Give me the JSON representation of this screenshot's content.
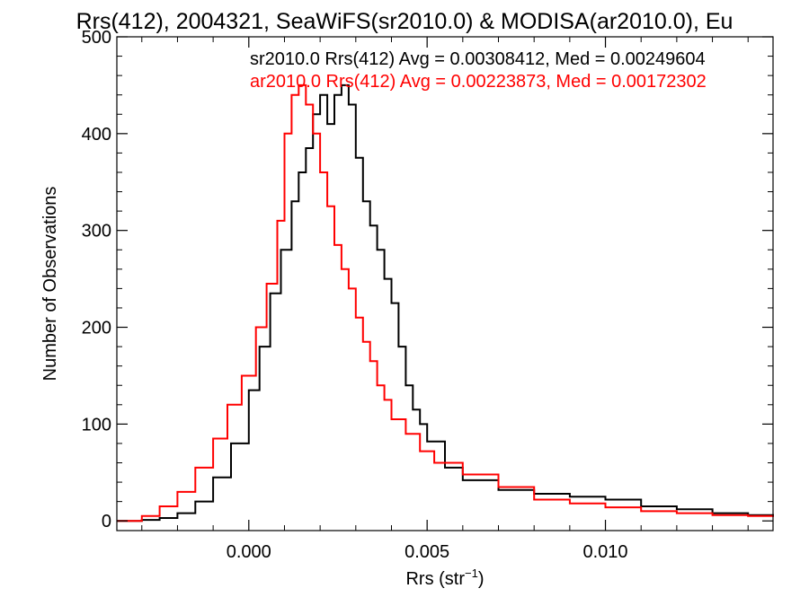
{
  "chart_data": {
    "type": "line",
    "title": "Rrs(412), 2004321, SeaWiFS(sr2010.0) & MODISA(ar2010.0), Eu",
    "xlabel": "Rrs (str",
    "xlabel_sup": "−1",
    "xlabel_close": ")",
    "ylabel": "Number of Observations",
    "xlim": [
      -0.0037,
      0.0147
    ],
    "ylim": [
      -10,
      500
    ],
    "x_ticks": [
      0.0,
      0.005,
      0.01
    ],
    "x_tick_labels": [
      "0.000",
      "0.005",
      "0.010"
    ],
    "y_ticks": [
      0,
      100,
      200,
      300,
      400,
      500
    ],
    "y_tick_labels": [
      "0",
      "100",
      "200",
      "300",
      "400",
      "500"
    ],
    "grid": false,
    "annotations": [
      {
        "text": "sr2010.0 Rrs(412) Avg = 0.00308412, Med = 0.00249604",
        "color": "#000000"
      },
      {
        "text": "ar2010.0 Rrs(412) Avg = 0.00223873, Med = 0.00172302",
        "color": "#ff0000"
      }
    ],
    "series": [
      {
        "color": "#000000",
        "x": [
          -0.0037,
          -0.003,
          -0.0025,
          -0.002,
          -0.0015,
          -0.001,
          -0.0005,
          0.0,
          0.0003,
          0.0006,
          0.0009,
          0.0012,
          0.0014,
          0.0016,
          0.0018,
          0.002,
          0.0022,
          0.0024,
          0.0026,
          0.0028,
          0.003,
          0.0032,
          0.0034,
          0.0036,
          0.0038,
          0.004,
          0.0042,
          0.0044,
          0.0046,
          0.0048,
          0.005,
          0.0055,
          0.006,
          0.007,
          0.008,
          0.009,
          0.01,
          0.011,
          0.012,
          0.013,
          0.014,
          0.0147
        ],
        "y": [
          0,
          1,
          3,
          8,
          20,
          45,
          80,
          135,
          180,
          235,
          280,
          330,
          360,
          385,
          420,
          440,
          410,
          440,
          450,
          430,
          375,
          330,
          305,
          280,
          250,
          225,
          180,
          140,
          115,
          100,
          82,
          55,
          42,
          32,
          28,
          25,
          22,
          15,
          12,
          8,
          6,
          5
        ]
      },
      {
        "color": "#ff0000",
        "x": [
          -0.0037,
          -0.003,
          -0.0025,
          -0.002,
          -0.0015,
          -0.001,
          -0.0006,
          -0.0002,
          0.0002,
          0.0005,
          0.0008,
          0.001,
          0.0012,
          0.0014,
          0.0016,
          0.0018,
          0.002,
          0.0022,
          0.0024,
          0.0026,
          0.0028,
          0.003,
          0.0032,
          0.0034,
          0.0036,
          0.0038,
          0.004,
          0.0044,
          0.0048,
          0.0052,
          0.006,
          0.007,
          0.008,
          0.009,
          0.01,
          0.011,
          0.012,
          0.013,
          0.014,
          0.0147
        ],
        "y": [
          0,
          5,
          15,
          30,
          55,
          85,
          120,
          150,
          200,
          245,
          310,
          400,
          440,
          450,
          430,
          400,
          360,
          325,
          285,
          260,
          240,
          210,
          185,
          165,
          140,
          125,
          105,
          90,
          72,
          60,
          48,
          35,
          22,
          18,
          14,
          10,
          8,
          6,
          5,
          4
        ]
      }
    ]
  }
}
